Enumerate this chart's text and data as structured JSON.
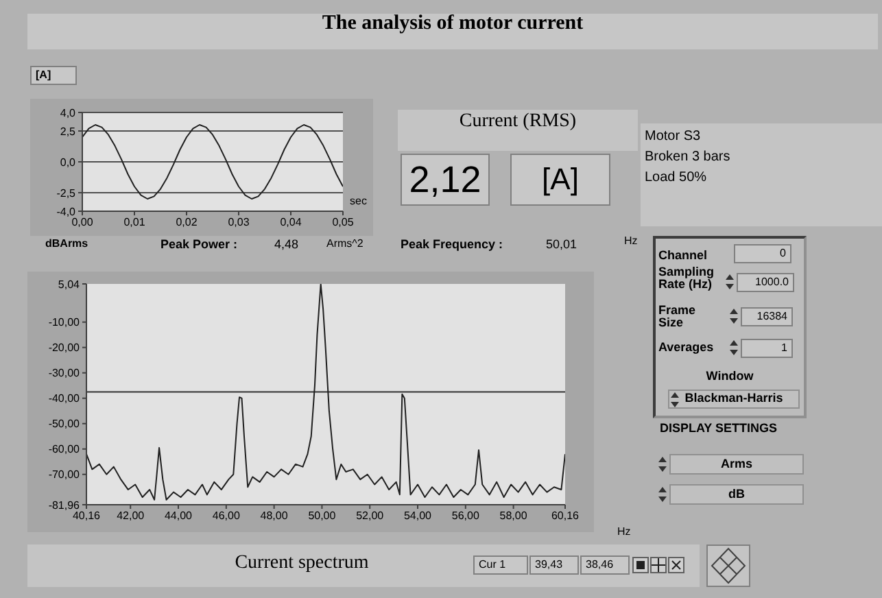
{
  "chart_data": [
    {
      "type": "other",
      "title": "The analysis of motor current"
    },
    {
      "type": "line",
      "ylabel": "[A]",
      "xlabel": "sec",
      "color": "#202020",
      "marker": "none",
      "line_style": "solid",
      "grid": "y",
      "x": [
        0,
        0.00125,
        0.0025,
        0.00375,
        0.005,
        0.00625,
        0.0075,
        0.00875,
        0.01,
        0.01125,
        0.0125,
        0.01375,
        0.015,
        0.01625,
        0.0175,
        0.01875,
        0.02,
        0.02125,
        0.0225,
        0.02375,
        0.025,
        0.02625,
        0.0275,
        0.02875,
        0.03,
        0.03125,
        0.0325,
        0.03375,
        0.035,
        0.03625,
        0.0375,
        0.03875,
        0.04,
        0.04125,
        0.0425,
        0.04375,
        0.045,
        0.04625,
        0.0475,
        0.04875,
        0.05
      ],
      "values": [
        2.0,
        2.7,
        3.0,
        2.8,
        2.2,
        1.3,
        0.2,
        -1.0,
        -2.0,
        -2.7,
        -3.0,
        -2.8,
        -2.2,
        -1.3,
        -0.2,
        1.0,
        2.0,
        2.7,
        3.0,
        2.8,
        2.2,
        1.3,
        0.2,
        -1.0,
        -2.0,
        -2.7,
        -3.0,
        -2.8,
        -2.2,
        -1.3,
        -0.2,
        1.0,
        2.0,
        2.7,
        3.0,
        2.8,
        2.2,
        1.3,
        0.2,
        -1.0,
        -2.0
      ],
      "xlim": [
        0,
        0.05
      ],
      "xticks": [
        {
          "value": 0,
          "label": "0,00"
        },
        {
          "value": 0.01,
          "label": "0,01"
        },
        {
          "value": 0.02,
          "label": "0,02"
        },
        {
          "value": 0.03,
          "label": "0,03"
        },
        {
          "value": 0.04,
          "label": "0,04"
        },
        {
          "value": 0.05,
          "label": "0,05"
        }
      ],
      "ylim": [
        -4,
        4
      ],
      "yticks": [
        {
          "value": 4,
          "label": "4,0"
        },
        {
          "value": 2.5,
          "label": "2,5"
        },
        {
          "value": 0,
          "label": "0,0"
        },
        {
          "value": -2.5,
          "label": "-2,5"
        },
        {
          "value": -4,
          "label": "-4,0"
        }
      ]
    },
    {
      "type": "other",
      "title": "Current (RMS)",
      "annotations": [
        "2,12",
        "[A]"
      ]
    },
    {
      "type": "other",
      "annotations": [
        "Motor S3",
        "Broken 3 bars",
        "Load 50%"
      ]
    },
    {
      "type": "line",
      "title": "Current spectrum",
      "ylabel": "dBArms",
      "xlabel": "Hz",
      "color": "#202020",
      "marker": "none",
      "line_style": "solid",
      "x": [
        40.16,
        40.4,
        40.7,
        41.0,
        41.3,
        41.6,
        41.9,
        42.2,
        42.5,
        42.8,
        43.0,
        43.1,
        43.2,
        43.35,
        43.5,
        43.8,
        44.1,
        44.4,
        44.7,
        45.0,
        45.2,
        45.5,
        45.8,
        46.1,
        46.3,
        46.45,
        46.55,
        46.65,
        46.75,
        46.9,
        47.1,
        47.4,
        47.7,
        48.0,
        48.3,
        48.6,
        48.9,
        49.2,
        49.4,
        49.55,
        49.7,
        49.8,
        49.95,
        50.05,
        50.15,
        50.3,
        50.45,
        50.6,
        50.8,
        51.0,
        51.3,
        51.6,
        51.9,
        52.2,
        52.5,
        52.8,
        53.1,
        53.25,
        53.35,
        53.45,
        53.55,
        53.7,
        54.0,
        54.3,
        54.6,
        54.9,
        55.2,
        55.5,
        55.8,
        56.1,
        56.4,
        56.55,
        56.7,
        57.0,
        57.3,
        57.6,
        57.9,
        58.2,
        58.5,
        58.8,
        59.1,
        59.4,
        59.7,
        60.0,
        60.16
      ],
      "values": [
        -62,
        -68,
        -66,
        -70,
        -67,
        -72,
        -76,
        -74,
        -79,
        -76,
        -80,
        -70,
        -59.5,
        -72,
        -80,
        -77,
        -79,
        -76,
        -78,
        -74,
        -78,
        -73,
        -76,
        -72,
        -70,
        -50,
        -39.6,
        -40,
        -55,
        -75,
        -71,
        -73,
        -69,
        -71,
        -68,
        -70,
        -66,
        -67,
        -62,
        -55,
        -35,
        -15,
        5,
        -5,
        -20,
        -45,
        -60,
        -72,
        -66,
        -69,
        -68,
        -72,
        -70,
        -74,
        -71,
        -76,
        -73,
        -78,
        -38.4,
        -40,
        -55,
        -78,
        -74,
        -79,
        -75,
        -78,
        -74,
        -79,
        -76,
        -78,
        -74,
        -60.4,
        -74,
        -78,
        -73,
        -79,
        -74,
        -77,
        -73,
        -78,
        -74,
        -77,
        -75,
        -76,
        -62
      ],
      "xlim": [
        40.16,
        60.16
      ],
      "xticks": [
        {
          "value": 40.16,
          "label": "40,16"
        },
        {
          "value": 42,
          "label": "42,00"
        },
        {
          "value": 44,
          "label": "44,00"
        },
        {
          "value": 46,
          "label": "46,00"
        },
        {
          "value": 48,
          "label": "48,00"
        },
        {
          "value": 50,
          "label": "50,00"
        },
        {
          "value": 52,
          "label": "52,00"
        },
        {
          "value": 54,
          "label": "54,00"
        },
        {
          "value": 56,
          "label": "56,00"
        },
        {
          "value": 58,
          "label": "58,00"
        },
        {
          "value": 60.16,
          "label": "60,16"
        }
      ],
      "ylim": [
        -81.96,
        5.04
      ],
      "yticks": [
        {
          "value": 5.04,
          "label": "5,04"
        },
        {
          "value": -10,
          "label": "-10,00"
        },
        {
          "value": -20,
          "label": "-20,00"
        },
        {
          "value": -30,
          "label": "-30,00"
        },
        {
          "value": -40,
          "label": "-40,00"
        },
        {
          "value": -50,
          "label": "-50,00"
        },
        {
          "value": -60,
          "label": "-60,00"
        },
        {
          "value": -70,
          "label": "-70,00"
        },
        {
          "value": -81.96,
          "label": "-81,96"
        }
      ],
      "ref_lines": [
        {
          "axis": "y",
          "value": -37.5,
          "color": "#303030"
        }
      ],
      "annotations": [
        "Peak Power :",
        "4,48",
        "Arms^2",
        "Peak Frequency :",
        "50,01",
        "Hz",
        "Cur 1",
        "39,43",
        "38,46"
      ]
    },
    {
      "type": "other",
      "annotations": [
        "Channel",
        "0",
        "Sampling Rate (Hz)",
        "1000.0",
        "Frame Size",
        "16384",
        "Averages",
        "1",
        "Window",
        "Blackman-Harris",
        "DISPLAY SETTINGS",
        "Arms",
        "dB"
      ]
    }
  ]
}
